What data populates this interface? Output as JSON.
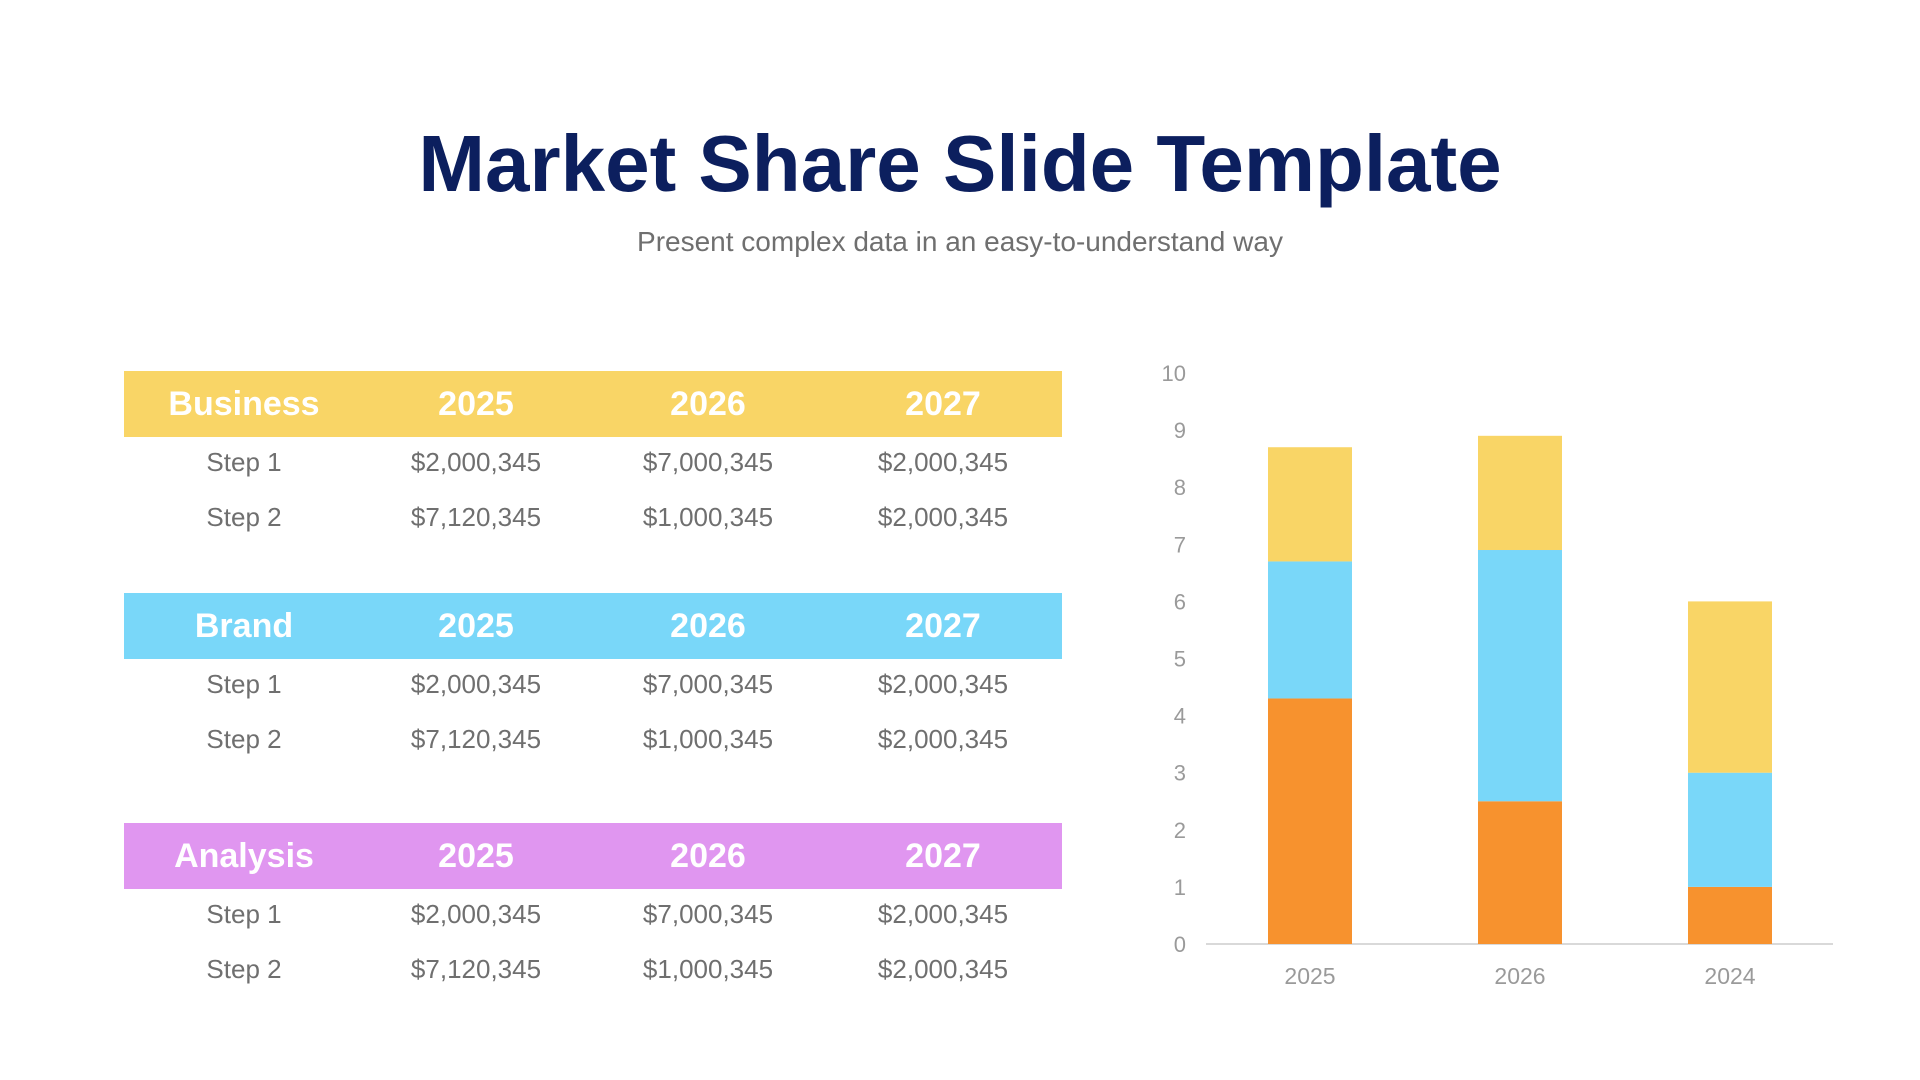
{
  "title": "Market Share Slide Template",
  "subtitle": "Present complex data in an easy-to-understand way",
  "tables": [
    {
      "header": [
        "Business",
        "2025",
        "2026",
        "2027"
      ],
      "color": "#f9d566",
      "rows": [
        [
          "Step 1",
          "$2,000,345",
          "$7,000,345",
          "$2,000,345"
        ],
        [
          "Step 2",
          "$7,120,345",
          "$1,000,345",
          "$2,000,345"
        ]
      ]
    },
    {
      "header": [
        "Brand",
        "2025",
        "2026",
        "2027"
      ],
      "color": "#79d7f9",
      "rows": [
        [
          "Step 1",
          "$2,000,345",
          "$7,000,345",
          "$2,000,345"
        ],
        [
          "Step 2",
          "$7,120,345",
          "$1,000,345",
          "$2,000,345"
        ]
      ]
    },
    {
      "header": [
        "Analysis",
        "2025",
        "2026",
        "2027"
      ],
      "color": "#e096f0",
      "rows": [
        [
          "Step 1",
          "$2,000,345",
          "$7,000,345",
          "$2,000,345"
        ],
        [
          "Step 2",
          "$7,120,345",
          "$1,000,345",
          "$2,000,345"
        ]
      ]
    }
  ],
  "chart_data": {
    "type": "bar",
    "stacked": true,
    "categories": [
      "2025",
      "2026",
      "2024"
    ],
    "series": [
      {
        "values": [
          4.3,
          2.5,
          1
        ],
        "color": "#f7922e"
      },
      {
        "values": [
          2.4,
          4.4,
          2
        ],
        "color": "#79d7f9"
      },
      {
        "values": [
          2,
          2,
          3
        ],
        "color": "#f9d566"
      }
    ],
    "ylim": [
      0,
      10
    ],
    "yticks": [
      "0",
      "1",
      "2",
      "3",
      "4",
      "5",
      "6",
      "7",
      "8",
      "9",
      "10"
    ],
    "grid": false,
    "legend": "none"
  }
}
